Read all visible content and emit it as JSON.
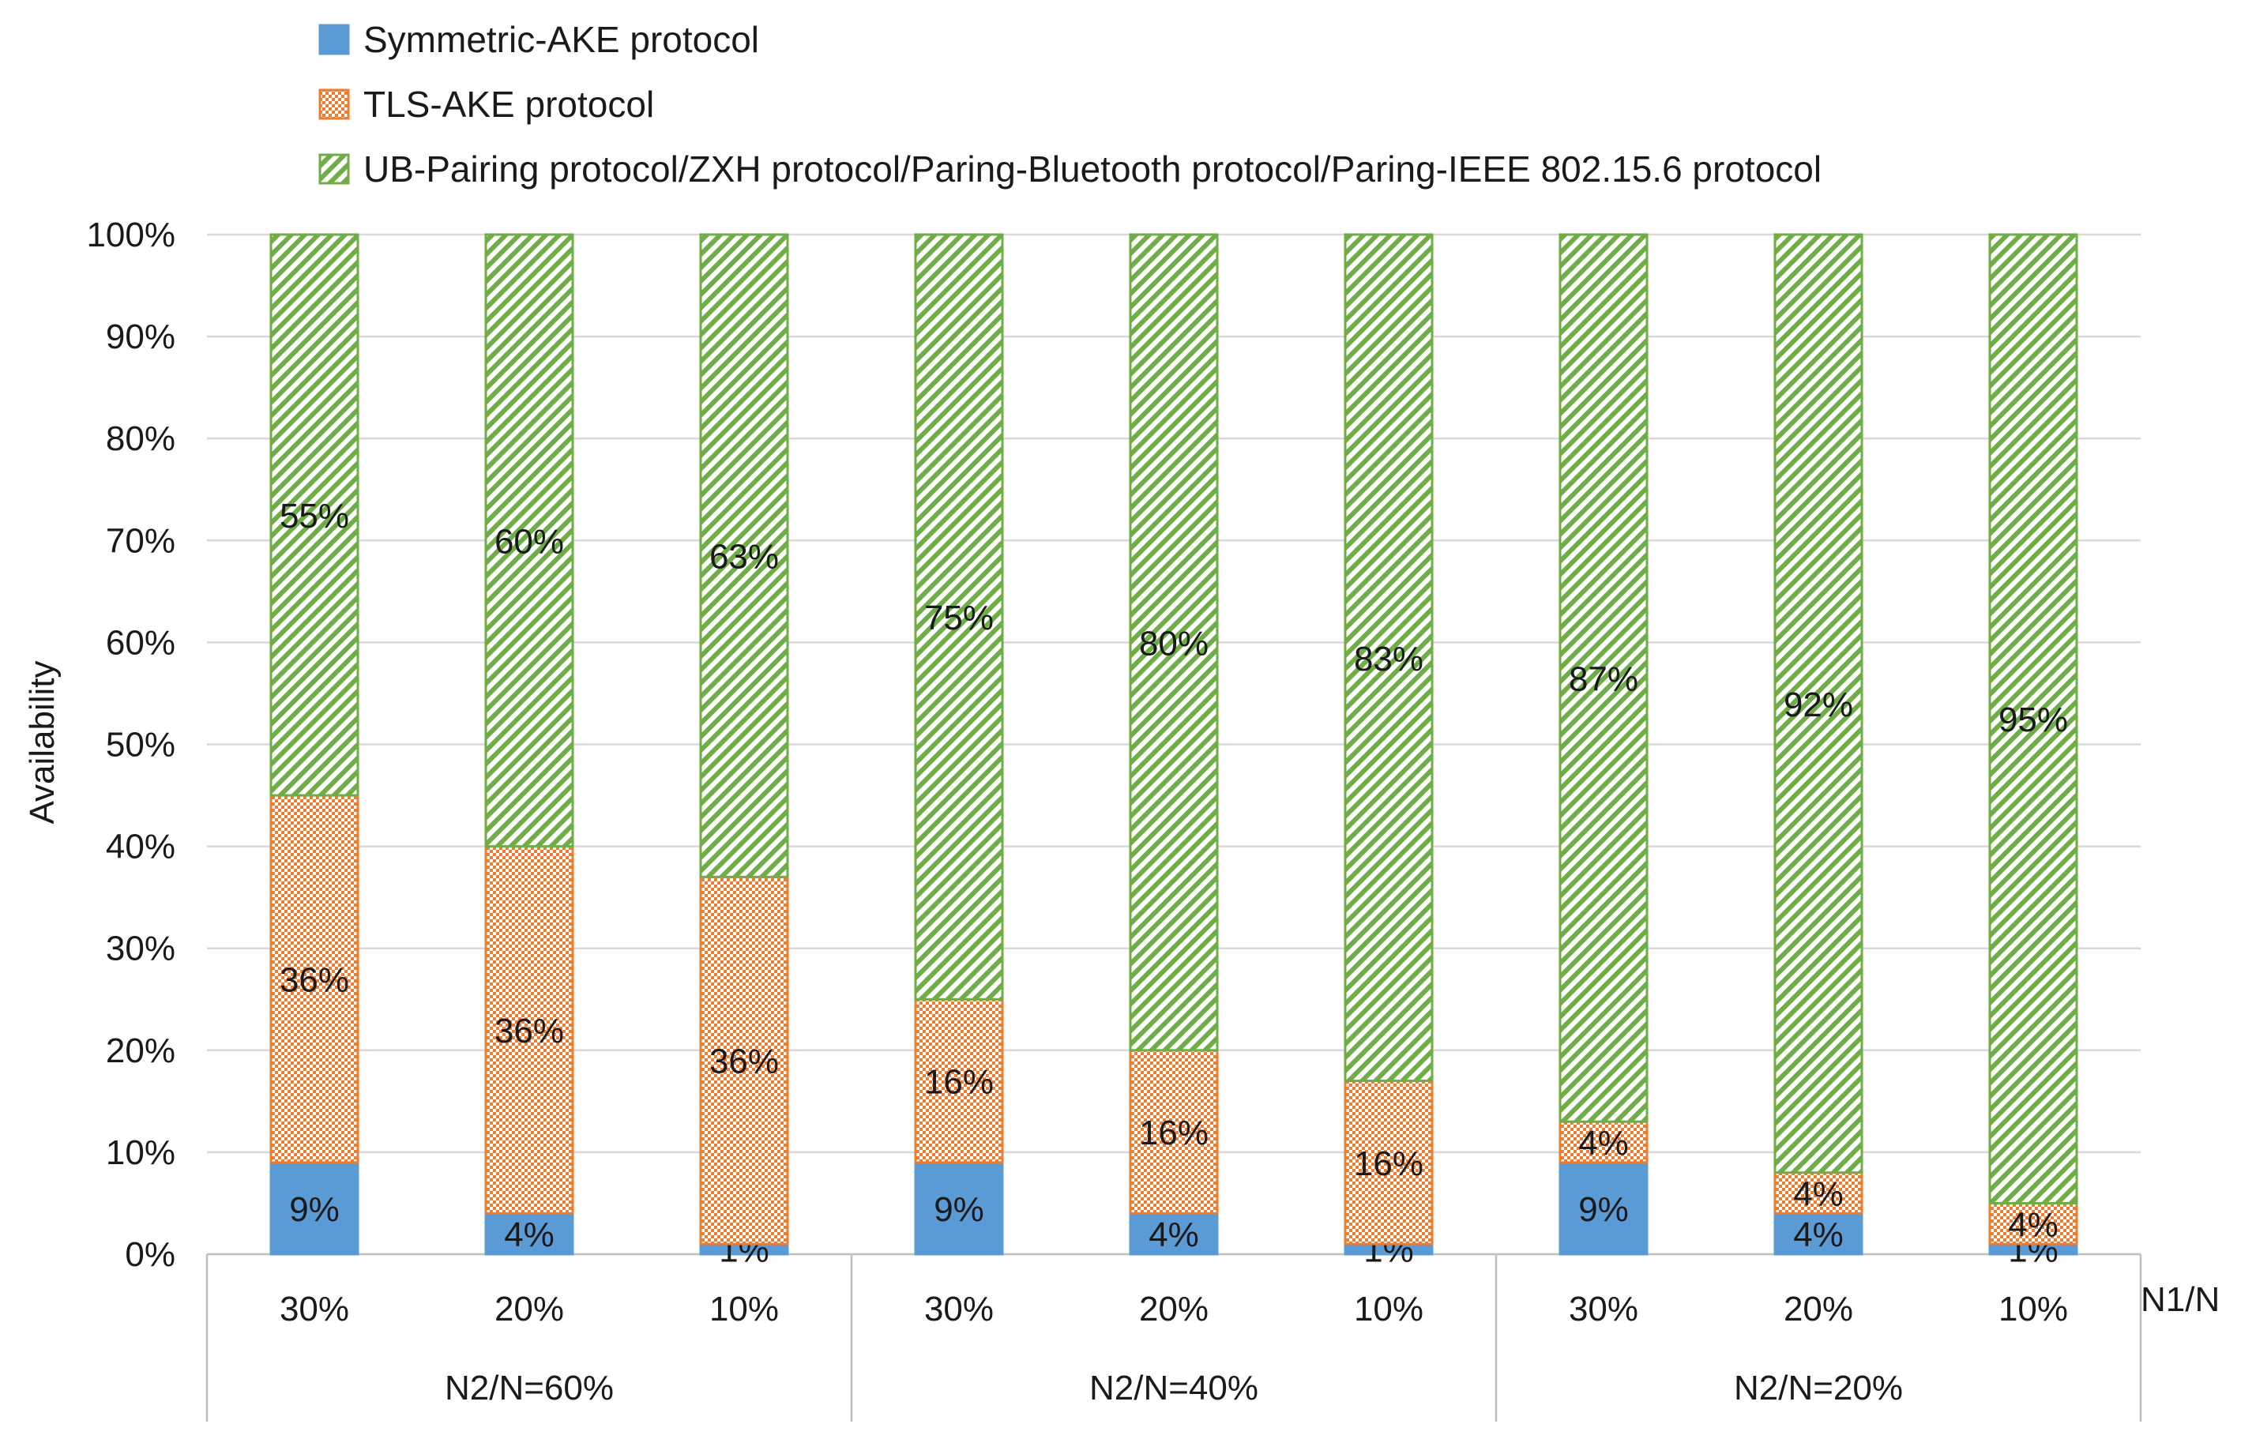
{
  "chart_data": {
    "type": "bar",
    "stacked": true,
    "title": "",
    "ylabel": "Availability",
    "xlabel_right": "N1/N",
    "ylim": [
      0,
      100
    ],
    "y_ticks": [
      "0%",
      "10%",
      "20%",
      "30%",
      "40%",
      "50%",
      "60%",
      "70%",
      "80%",
      "90%",
      "100%"
    ],
    "categories": [
      "30%",
      "20%",
      "10%",
      "30%",
      "20%",
      "10%",
      "30%",
      "20%",
      "10%"
    ],
    "groups": [
      {
        "label": "N2/N=60%",
        "span": 3
      },
      {
        "label": "N2/N=40%",
        "span": 3
      },
      {
        "label": "N2/N=20%",
        "span": 3
      }
    ],
    "series": [
      {
        "name": "Symmetric-AKE protocol",
        "color": "#5b9bd5",
        "pattern": "solid",
        "values": [
          9,
          4,
          1,
          9,
          4,
          1,
          9,
          4,
          1
        ],
        "labels": [
          "9%",
          "4%",
          "1%",
          "9%",
          "4%",
          "1%",
          "9%",
          "4%",
          "1%"
        ]
      },
      {
        "name": "TLS-AKE protocol",
        "color": "#ed7d31",
        "pattern": "checker",
        "values": [
          36,
          36,
          36,
          16,
          16,
          16,
          4,
          4,
          4
        ],
        "labels": [
          "36%",
          "36%",
          "36%",
          "16%",
          "16%",
          "16%",
          "4%",
          "4%",
          "4%"
        ]
      },
      {
        "name": "UB-Pairing protocol/ZXH protocol/Paring-Bluetooth protocol/Paring-IEEE 802.15.6 protocol",
        "color": "#70ad47",
        "pattern": "diagonal",
        "values": [
          55,
          60,
          63,
          75,
          80,
          83,
          87,
          92,
          95
        ],
        "labels": [
          "55%",
          "60%",
          "63%",
          "75%",
          "80%",
          "83%",
          "87%",
          "92%",
          "95%"
        ]
      }
    ],
    "legend_position": "top-left",
    "grid": true
  }
}
